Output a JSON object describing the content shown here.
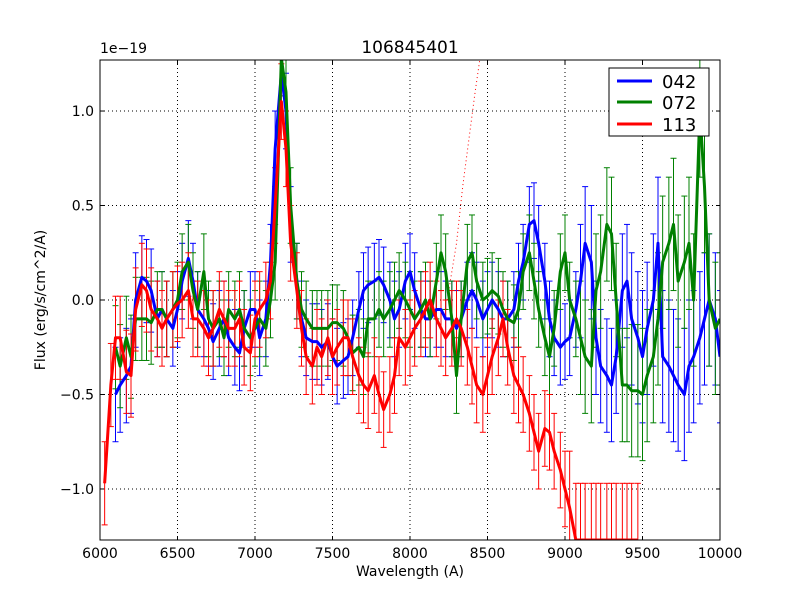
{
  "chart_data": {
    "type": "line",
    "title": "106845401",
    "xlabel": "Wavelength (A)",
    "ylabel": "Flux (erg/s/cm^2/A)",
    "offset_label": "1e−19",
    "xlim": [
      6000,
      10000
    ],
    "ylim": [
      -1.27,
      1.27
    ],
    "x_ticks": [
      6000,
      6500,
      7000,
      7500,
      8000,
      8500,
      9000,
      9500,
      10000
    ],
    "x_tick_labels": [
      "6000",
      "6500",
      "7000",
      "7500",
      "8000",
      "8500",
      "9000",
      "9500",
      "10000"
    ],
    "y_ticks": [
      1.0,
      0.5,
      0.0,
      -0.5,
      -1.0
    ],
    "y_tick_labels": [
      "1.0",
      "0.5",
      "0.0",
      "−0.5",
      "−1.0"
    ],
    "grid": true,
    "legend_position": "top-right",
    "dotted_line": {
      "color": "#ff0000",
      "x": [
        8240,
        8300,
        8340,
        8380,
        8420,
        8450
      ],
      "y": [
        0.0,
        0.3,
        0.6,
        0.85,
        1.1,
        1.27
      ]
    },
    "series": [
      {
        "name": "042",
        "color": "#0000ff",
        "x": [
          6100,
          6130,
          6170,
          6200,
          6230,
          6270,
          6300,
          6330,
          6370,
          6400,
          6430,
          6470,
          6500,
          6530,
          6570,
          6600,
          6630,
          6670,
          6700,
          6730,
          6770,
          6800,
          6830,
          6870,
          6900,
          6930,
          6970,
          7000,
          7030,
          7070,
          7100,
          7130,
          7170,
          7200,
          7230,
          7270,
          7300,
          7330,
          7370,
          7400,
          7430,
          7470,
          7500,
          7530,
          7570,
          7600,
          7630,
          7670,
          7700,
          7730,
          7770,
          7800,
          7830,
          7870,
          7900,
          7930,
          7970,
          8000,
          8030,
          8070,
          8100,
          8130,
          8170,
          8200,
          8230,
          8270,
          8300,
          8330,
          8370,
          8400,
          8430,
          8470,
          8500,
          8530,
          8570,
          8600,
          8630,
          8670,
          8700,
          8730,
          8770,
          8800,
          8830,
          8870,
          8900,
          8930,
          8970,
          9000,
          9030,
          9070,
          9100,
          9130,
          9170,
          9200,
          9230,
          9270,
          9300,
          9330,
          9370,
          9400,
          9430,
          9470,
          9500,
          9530,
          9570,
          9600,
          9630,
          9670,
          9700,
          9730,
          9770,
          9800,
          9830,
          9870,
          9900,
          9930,
          9970,
          10000
        ],
        "y": [
          -0.5,
          -0.45,
          -0.4,
          -0.35,
          0.0,
          0.12,
          0.1,
          0.05,
          -0.1,
          -0.05,
          -0.1,
          -0.15,
          -0.05,
          0.1,
          0.22,
          0.1,
          -0.05,
          -0.1,
          -0.15,
          -0.22,
          -0.15,
          -0.1,
          -0.2,
          -0.25,
          -0.28,
          -0.15,
          -0.05,
          -0.05,
          -0.2,
          -0.1,
          0.2,
          0.8,
          1.2,
          1.0,
          0.4,
          0.1,
          -0.1,
          -0.2,
          -0.22,
          -0.22,
          -0.25,
          -0.22,
          -0.3,
          -0.35,
          -0.32,
          -0.3,
          -0.2,
          -0.05,
          0.05,
          0.08,
          0.1,
          0.12,
          0.08,
          0.0,
          -0.1,
          -0.05,
          0.1,
          0.15,
          0.05,
          -0.05,
          -0.1,
          -0.1,
          -0.05,
          -0.05,
          -0.1,
          -0.1,
          -0.15,
          -0.1,
          0.0,
          0.05,
          0.0,
          -0.1,
          -0.05,
          0.0,
          -0.05,
          -0.1,
          -0.1,
          -0.05,
          0.1,
          0.2,
          0.4,
          0.42,
          0.3,
          0.1,
          -0.1,
          -0.2,
          -0.25,
          -0.22,
          -0.2,
          -0.05,
          0.1,
          0.3,
          0.2,
          -0.2,
          -0.35,
          -0.4,
          -0.45,
          -0.3,
          0.05,
          0.1,
          -0.1,
          -0.2,
          -0.3,
          -0.15,
          0.0,
          0.3,
          -0.3,
          -0.35,
          -0.4,
          -0.45,
          -0.5,
          -0.35,
          -0.3,
          -0.2,
          -0.1,
          0.0,
          -0.1,
          -0.3
        ],
        "err": [
          0.25,
          0.25,
          0.25,
          0.25,
          0.25,
          0.22,
          0.22,
          0.22,
          0.2,
          0.2,
          0.2,
          0.2,
          0.2,
          0.2,
          0.2,
          0.2,
          0.2,
          0.2,
          0.2,
          0.2,
          0.2,
          0.2,
          0.2,
          0.2,
          0.2,
          0.2,
          0.2,
          0.2,
          0.2,
          0.2,
          0.2,
          0.2,
          0.2,
          0.2,
          0.2,
          0.2,
          0.2,
          0.2,
          0.2,
          0.2,
          0.2,
          0.2,
          0.2,
          0.2,
          0.2,
          0.2,
          0.2,
          0.2,
          0.2,
          0.2,
          0.2,
          0.2,
          0.2,
          0.2,
          0.2,
          0.2,
          0.2,
          0.2,
          0.2,
          0.2,
          0.2,
          0.2,
          0.2,
          0.2,
          0.2,
          0.2,
          0.2,
          0.2,
          0.2,
          0.2,
          0.2,
          0.2,
          0.2,
          0.2,
          0.2,
          0.2,
          0.2,
          0.2,
          0.2,
          0.2,
          0.2,
          0.2,
          0.2,
          0.2,
          0.2,
          0.2,
          0.2,
          0.2,
          0.2,
          0.2,
          0.3,
          0.3,
          0.3,
          0.3,
          0.3,
          0.3,
          0.3,
          0.3,
          0.3,
          0.3,
          0.35,
          0.35,
          0.35,
          0.35,
          0.35,
          0.35,
          0.35,
          0.35,
          0.35,
          0.35,
          0.35,
          0.35,
          0.35,
          0.35,
          0.35,
          0.35,
          0.35,
          0.35
        ]
      },
      {
        "name": "072",
        "color": "#008000",
        "x": [
          6100,
          6130,
          6170,
          6200,
          6230,
          6270,
          6300,
          6330,
          6370,
          6400,
          6430,
          6470,
          6500,
          6530,
          6570,
          6600,
          6630,
          6670,
          6700,
          6730,
          6770,
          6800,
          6830,
          6870,
          6900,
          6930,
          6970,
          7000,
          7030,
          7070,
          7100,
          7130,
          7170,
          7200,
          7230,
          7270,
          7300,
          7330,
          7370,
          7400,
          7430,
          7470,
          7500,
          7530,
          7570,
          7600,
          7630,
          7670,
          7700,
          7730,
          7770,
          7800,
          7830,
          7870,
          7900,
          7930,
          7970,
          8000,
          8030,
          8070,
          8100,
          8130,
          8170,
          8200,
          8230,
          8270,
          8300,
          8330,
          8370,
          8400,
          8430,
          8470,
          8500,
          8530,
          8570,
          8600,
          8630,
          8670,
          8700,
          8730,
          8770,
          8800,
          8830,
          8870,
          8900,
          8930,
          8970,
          9000,
          9030,
          9070,
          9100,
          9130,
          9170,
          9200,
          9230,
          9270,
          9300,
          9330,
          9370,
          9400,
          9430,
          9470,
          9500,
          9530,
          9570,
          9600,
          9630,
          9670,
          9700,
          9730,
          9770,
          9800,
          9830,
          9870,
          9900,
          9930,
          9970,
          10000
        ],
        "y": [
          -0.25,
          -0.35,
          -0.2,
          -0.3,
          -0.1,
          -0.1,
          -0.1,
          -0.12,
          -0.05,
          -0.05,
          -0.1,
          -0.05,
          0.0,
          0.15,
          0.2,
          0.05,
          -0.05,
          0.15,
          -0.1,
          -0.15,
          -0.1,
          -0.2,
          -0.05,
          -0.1,
          -0.05,
          -0.15,
          -0.2,
          -0.15,
          -0.1,
          -0.15,
          0.0,
          0.2,
          1.28,
          1.1,
          0.5,
          0.1,
          -0.05,
          -0.1,
          -0.15,
          -0.15,
          -0.15,
          -0.15,
          -0.12,
          -0.12,
          -0.15,
          -0.2,
          -0.28,
          -0.25,
          -0.3,
          -0.1,
          -0.1,
          -0.05,
          -0.1,
          -0.05,
          0.0,
          0.05,
          0.0,
          -0.05,
          -0.1,
          -0.05,
          0.0,
          -0.1,
          0.1,
          0.25,
          0.15,
          -0.1,
          -0.4,
          -0.1,
          0.2,
          0.25,
          0.1,
          0.0,
          0.02,
          0.05,
          0.02,
          -0.05,
          -0.1,
          -0.12,
          -0.05,
          0.15,
          0.25,
          0.1,
          -0.05,
          -0.2,
          -0.3,
          -0.15,
          0.15,
          0.25,
          0.0,
          -0.1,
          -0.2,
          -0.3,
          -0.35,
          0.05,
          0.15,
          0.4,
          0.35,
          0.0,
          -0.45,
          -0.45,
          -0.48,
          -0.48,
          -0.5,
          -0.4,
          -0.3,
          -0.1,
          0.2,
          0.3,
          0.4,
          0.1,
          0.2,
          0.3,
          0.0,
          1.0,
          0.6,
          0.0,
          -0.15,
          -0.1
        ],
        "err": [
          0.22,
          0.22,
          0.22,
          0.22,
          0.22,
          0.22,
          0.22,
          0.22,
          0.2,
          0.2,
          0.2,
          0.2,
          0.2,
          0.2,
          0.2,
          0.2,
          0.2,
          0.2,
          0.2,
          0.2,
          0.2,
          0.2,
          0.2,
          0.2,
          0.2,
          0.2,
          0.2,
          0.2,
          0.2,
          0.2,
          0.2,
          0.2,
          0.2,
          0.2,
          0.2,
          0.2,
          0.2,
          0.2,
          0.2,
          0.2,
          0.2,
          0.2,
          0.2,
          0.2,
          0.2,
          0.2,
          0.2,
          0.2,
          0.2,
          0.2,
          0.2,
          0.2,
          0.2,
          0.2,
          0.2,
          0.2,
          0.2,
          0.2,
          0.2,
          0.2,
          0.2,
          0.2,
          0.2,
          0.2,
          0.2,
          0.2,
          0.2,
          0.2,
          0.2,
          0.2,
          0.2,
          0.2,
          0.2,
          0.2,
          0.2,
          0.2,
          0.2,
          0.2,
          0.2,
          0.2,
          0.2,
          0.2,
          0.2,
          0.2,
          0.2,
          0.2,
          0.2,
          0.2,
          0.2,
          0.2,
          0.3,
          0.3,
          0.3,
          0.3,
          0.3,
          0.3,
          0.3,
          0.3,
          0.3,
          0.3,
          0.35,
          0.35,
          0.35,
          0.35,
          0.35,
          0.35,
          0.35,
          0.35,
          0.35,
          0.35,
          0.35,
          0.35,
          0.35,
          0.35,
          0.35,
          0.35,
          0.35,
          0.35
        ]
      },
      {
        "name": "113",
        "color": "#ff0000",
        "x": [
          6030,
          6070,
          6100,
          6130,
          6170,
          6200,
          6230,
          6270,
          6300,
          6330,
          6370,
          6400,
          6430,
          6470,
          6500,
          6530,
          6570,
          6600,
          6630,
          6670,
          6700,
          6730,
          6770,
          6800,
          6830,
          6870,
          6900,
          6930,
          6970,
          7000,
          7030,
          7070,
          7100,
          7130,
          7170,
          7200,
          7230,
          7270,
          7300,
          7330,
          7370,
          7400,
          7430,
          7470,
          7500,
          7530,
          7570,
          7600,
          7630,
          7670,
          7700,
          7730,
          7770,
          7800,
          7830,
          7870,
          7900,
          7930,
          7970,
          8000,
          8030,
          8070,
          8100,
          8130,
          8170,
          8200,
          8230,
          8270,
          8300,
          8330,
          8370,
          8400,
          8430,
          8470,
          8500,
          8530,
          8570,
          8600,
          8630,
          8670,
          8700,
          8730,
          8770,
          8800,
          8830,
          8870,
          8900,
          8930,
          8970,
          9000,
          9030,
          9070,
          9100,
          9130,
          9170,
          9200,
          9230,
          9270,
          9300,
          9330,
          9370,
          9400,
          9430,
          9470
        ],
        "y": [
          -0.97,
          -0.45,
          -0.2,
          -0.2,
          -0.38,
          -0.4,
          -0.05,
          0.08,
          0.05,
          -0.05,
          -0.1,
          -0.15,
          -0.1,
          -0.05,
          -0.02,
          0.0,
          0.05,
          -0.1,
          -0.1,
          -0.15,
          -0.2,
          -0.15,
          -0.05,
          -0.1,
          -0.15,
          -0.15,
          -0.1,
          -0.25,
          -0.28,
          -0.1,
          -0.05,
          0.0,
          0.1,
          0.5,
          1.05,
          0.8,
          0.3,
          0.05,
          -0.15,
          -0.3,
          -0.35,
          -0.25,
          -0.3,
          -0.2,
          -0.3,
          -0.25,
          -0.2,
          -0.2,
          -0.3,
          -0.4,
          -0.45,
          -0.48,
          -0.4,
          -0.5,
          -0.58,
          -0.5,
          -0.4,
          -0.2,
          -0.25,
          -0.2,
          -0.15,
          -0.1,
          -0.05,
          0.0,
          -0.1,
          -0.15,
          -0.2,
          -0.15,
          -0.1,
          -0.15,
          -0.25,
          -0.35,
          -0.45,
          -0.5,
          -0.4,
          -0.3,
          -0.2,
          -0.1,
          -0.25,
          -0.4,
          -0.45,
          -0.5,
          -0.6,
          -0.7,
          -0.8,
          -0.68,
          -0.7,
          -0.8,
          -0.9,
          -1.0,
          -1.1,
          -1.27,
          -1.27,
          -1.27,
          -1.27,
          -1.27,
          -1.27,
          -1.27,
          -1.27,
          -1.27,
          -1.27,
          -1.27,
          -1.27,
          -1.27
        ],
        "err": [
          0.22,
          0.22,
          0.22,
          0.22,
          0.22,
          0.22,
          0.22,
          0.22,
          0.22,
          0.22,
          0.2,
          0.2,
          0.2,
          0.2,
          0.2,
          0.2,
          0.2,
          0.2,
          0.2,
          0.2,
          0.2,
          0.2,
          0.2,
          0.2,
          0.2,
          0.2,
          0.2,
          0.2,
          0.2,
          0.2,
          0.2,
          0.2,
          0.2,
          0.2,
          0.2,
          0.2,
          0.2,
          0.2,
          0.2,
          0.2,
          0.2,
          0.2,
          0.2,
          0.2,
          0.2,
          0.2,
          0.2,
          0.2,
          0.2,
          0.2,
          0.2,
          0.2,
          0.2,
          0.2,
          0.2,
          0.2,
          0.2,
          0.2,
          0.2,
          0.2,
          0.2,
          0.2,
          0.2,
          0.2,
          0.2,
          0.2,
          0.2,
          0.2,
          0.2,
          0.2,
          0.2,
          0.2,
          0.2,
          0.2,
          0.2,
          0.2,
          0.2,
          0.2,
          0.2,
          0.2,
          0.2,
          0.2,
          0.2,
          0.2,
          0.2,
          0.2,
          0.2,
          0.2,
          0.2,
          0.2,
          0.3,
          0.3,
          0.3,
          0.3,
          0.3,
          0.3,
          0.3,
          0.3,
          0.3,
          0.3,
          0.3,
          0.3,
          0.3,
          0.3
        ]
      }
    ]
  }
}
